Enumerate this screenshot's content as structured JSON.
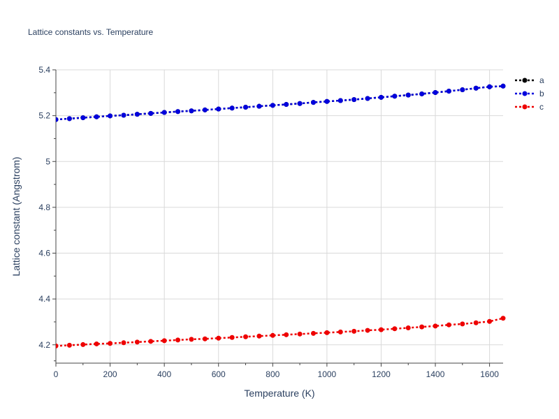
{
  "chart_data": {
    "type": "line",
    "title": "Lattice constants vs. Temperature",
    "xlabel": "Temperature (K)",
    "ylabel": "Lattice constant (Angstrom)",
    "xlim": [
      0,
      1650
    ],
    "ylim": [
      4.12,
      5.4
    ],
    "xticks": [
      0,
      200,
      400,
      600,
      800,
      1000,
      1200,
      1400,
      1600
    ],
    "xtick_labels": [
      "0",
      "200",
      "400",
      "600",
      "800",
      "1000",
      "1200",
      "1400",
      "1600"
    ],
    "yticks": [
      4.2,
      4.4,
      4.6,
      4.8,
      5.0,
      5.2,
      5.4
    ],
    "ytick_labels": [
      "4.2",
      "4.4",
      "4.6",
      "4.8",
      "5",
      "5.2",
      "5.4"
    ],
    "grid": true,
    "legend_position": "top-right",
    "x": [
      0,
      50,
      100,
      150,
      200,
      250,
      300,
      350,
      400,
      450,
      500,
      550,
      600,
      650,
      700,
      750,
      800,
      850,
      900,
      950,
      1000,
      1050,
      1100,
      1150,
      1200,
      1250,
      1300,
      1350,
      1400,
      1450,
      1500,
      1550,
      1600,
      1650
    ],
    "series": [
      {
        "name": "a",
        "color": "#000000",
        "values": [
          5.183,
          5.187,
          5.191,
          5.195,
          5.199,
          5.202,
          5.206,
          5.21,
          5.214,
          5.218,
          5.221,
          5.225,
          5.229,
          5.233,
          5.237,
          5.241,
          5.245,
          5.249,
          5.253,
          5.258,
          5.262,
          5.266,
          5.27,
          5.275,
          5.28,
          5.285,
          5.29,
          5.295,
          5.301,
          5.307,
          5.313,
          5.32,
          5.326,
          5.329
        ]
      },
      {
        "name": "b",
        "color": "#0000dd",
        "values": [
          5.183,
          5.187,
          5.191,
          5.195,
          5.199,
          5.202,
          5.206,
          5.21,
          5.214,
          5.218,
          5.221,
          5.225,
          5.229,
          5.233,
          5.237,
          5.241,
          5.245,
          5.249,
          5.253,
          5.258,
          5.262,
          5.266,
          5.27,
          5.275,
          5.28,
          5.285,
          5.29,
          5.295,
          5.301,
          5.307,
          5.313,
          5.32,
          5.326,
          5.329
        ]
      },
      {
        "name": "c",
        "color": "#ee0000",
        "values": [
          4.195,
          4.198,
          4.201,
          4.204,
          4.206,
          4.209,
          4.212,
          4.215,
          4.218,
          4.221,
          4.224,
          4.226,
          4.229,
          4.232,
          4.235,
          4.238,
          4.241,
          4.244,
          4.247,
          4.25,
          4.253,
          4.256,
          4.259,
          4.263,
          4.266,
          4.27,
          4.274,
          4.278,
          4.282,
          4.287,
          4.291,
          4.296,
          4.302,
          4.316
        ]
      }
    ]
  }
}
